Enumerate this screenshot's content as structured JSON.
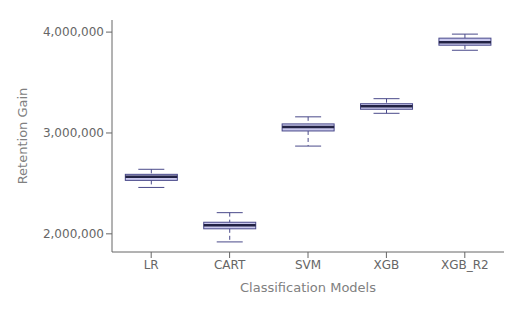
{
  "chart_data": {
    "type": "box",
    "xlabel": "Classification Models",
    "ylabel": "Retention Gain",
    "categories": [
      "LR",
      "CART",
      "SVM",
      "XGB",
      "XGB_R2"
    ],
    "boxes": [
      {
        "whislo": 2460000,
        "q1": 2530000,
        "med": 2565000,
        "q3": 2590000,
        "whishi": 2640000
      },
      {
        "whislo": 1920000,
        "q1": 2050000,
        "med": 2085000,
        "q3": 2115000,
        "whishi": 2210000
      },
      {
        "whislo": 2870000,
        "q1": 3020000,
        "med": 3060000,
        "q3": 3090000,
        "whishi": 3160000
      },
      {
        "whislo": 3195000,
        "q1": 3235000,
        "med": 3265000,
        "q3": 3290000,
        "whishi": 3340000
      },
      {
        "whislo": 3820000,
        "q1": 3870000,
        "med": 3900000,
        "q3": 3940000,
        "whishi": 3980000
      }
    ],
    "ylim": [
      1820000,
      4120000
    ],
    "yticks": [
      {
        "value": 2000000,
        "label": "2,000,000"
      },
      {
        "value": 3000000,
        "label": "3,000,000"
      },
      {
        "value": 4000000,
        "label": "4,000,000"
      }
    ],
    "grid": false
  }
}
